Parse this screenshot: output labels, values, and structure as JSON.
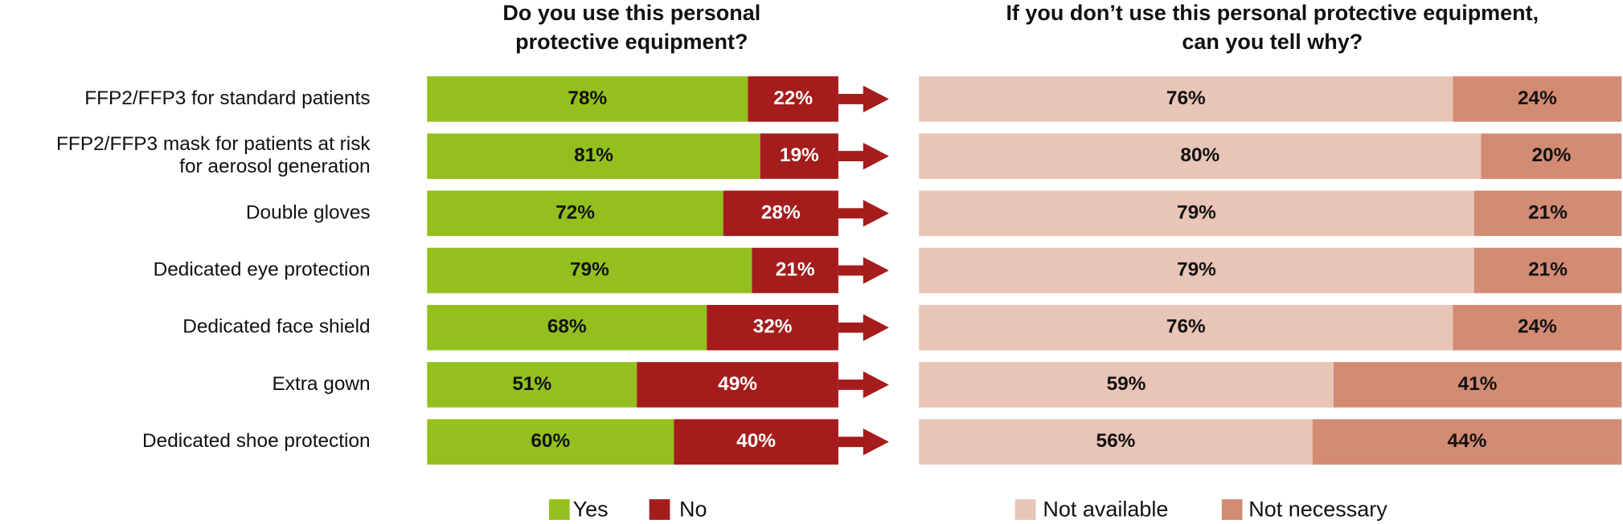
{
  "chart_data": [
    {
      "type": "bar",
      "stacked": true,
      "orientation": "horizontal",
      "title": [
        "Do you use this personal",
        "protective equipment?"
      ],
      "categories": [
        "FFP2/FFP3 for standard patients",
        [
          "FFP2/FFP3 mask for patients at risk",
          "for aerosol generation"
        ],
        "Double gloves",
        "Dedicated eye protection",
        "Dedicated face shield",
        "Extra gown",
        "Dedicated shoe protection"
      ],
      "xlim": [
        0,
        100
      ],
      "series": [
        {
          "name": "Yes",
          "color": "#93c01f",
          "label_color": "#111111",
          "values": [
            78,
            81,
            72,
            79,
            68,
            51,
            60
          ],
          "value_labels": [
            "78%",
            "81%",
            "72%",
            "79%",
            "68%",
            "51%",
            "60%"
          ]
        },
        {
          "name": "No",
          "color": "#a51c1c",
          "label_color": "#ffffff",
          "values": [
            22,
            19,
            28,
            21,
            32,
            49,
            40
          ],
          "value_labels": [
            "22%",
            "19%",
            "28%",
            "21%",
            "32%",
            "49%",
            "40%"
          ]
        }
      ]
    },
    {
      "type": "bar",
      "stacked": true,
      "orientation": "horizontal",
      "title": [
        "If you don’t use this personal protective equipment,",
        "can you tell why?"
      ],
      "xlim": [
        0,
        100
      ],
      "series": [
        {
          "name": "Not available",
          "color": "#e8c5b6",
          "label_color": "#111111",
          "values": [
            76,
            80,
            79,
            79,
            76,
            59,
            56
          ],
          "value_labels": [
            "76%",
            "80%",
            "79%",
            "79%",
            "76%",
            "59%",
            "56%"
          ]
        },
        {
          "name": "Not necessary",
          "color": "#d38b74",
          "label_color": "#111111",
          "values": [
            24,
            20,
            21,
            21,
            24,
            41,
            44
          ],
          "value_labels": [
            "24%",
            "20%",
            "21%",
            "21%",
            "24%",
            "41%",
            "44%"
          ]
        }
      ]
    }
  ]
}
